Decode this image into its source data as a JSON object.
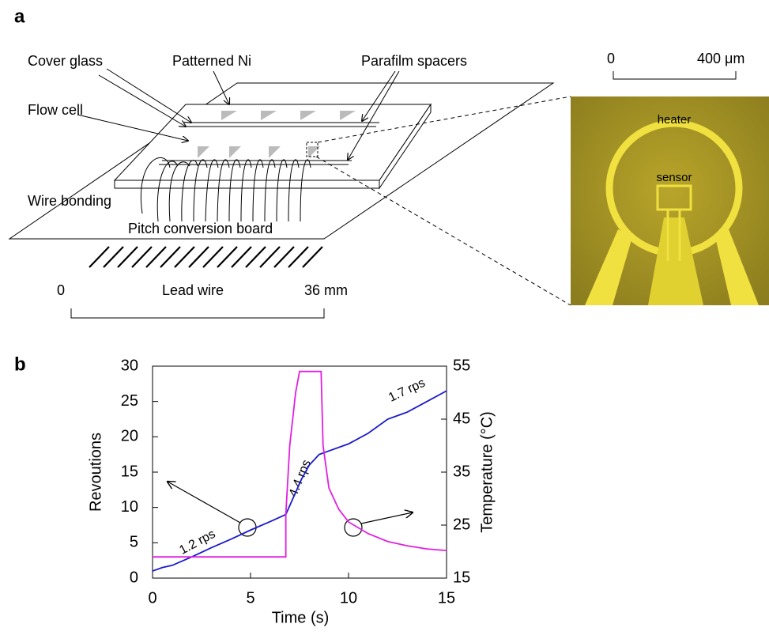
{
  "panel_labels": [
    "a",
    "b"
  ],
  "diagram": {
    "labels": [
      "Cover glass",
      "Patterned Ni",
      "Parafilm spacers",
      "Flow cell",
      "Wire bonding",
      "Pitch conversion board",
      "Lead wire"
    ],
    "scale_bar": [
      "0",
      "36 mm"
    ],
    "micrograph": {
      "scale_bar": [
        "0",
        "400 μm"
      ],
      "heater": "heater",
      "sensor": "sensor"
    }
  },
  "chart_data": {
    "type": "line",
    "xlabel": "Time (s)",
    "ylabel": "Revoutions",
    "y2label": "Temperature (°C)",
    "xlim": [
      0,
      15
    ],
    "xticks": [
      0,
      5,
      10,
      15
    ],
    "ylim": [
      0,
      30
    ],
    "yticks": [
      0,
      5,
      10,
      15,
      20,
      25,
      30
    ],
    "y2lim": [
      15,
      55
    ],
    "y2ticks": [
      15,
      25,
      35,
      45,
      55
    ],
    "series": [
      {
        "color": "#1a1acc",
        "x": [
          0,
          0.5,
          1,
          2,
          3,
          4,
          5,
          6,
          6.8,
          7.2,
          7.6,
          8,
          8.5,
          9,
          10,
          11,
          12,
          13,
          14,
          15
        ],
        "values": [
          1,
          1.5,
          1.8,
          3,
          4.3,
          5.5,
          6.8,
          8,
          9,
          11.5,
          14,
          16,
          17.5,
          18,
          19,
          20.5,
          22.5,
          23.5,
          25,
          26.5
        ]
      },
      {
        "color": "#e020e0",
        "axis": "y2",
        "x": [
          0,
          6.8,
          6.8,
          7,
          7.3,
          7.5,
          8.6,
          8.7,
          9,
          9.5,
          10,
          11,
          12,
          13,
          14,
          15
        ],
        "values": [
          19,
          19,
          27,
          40,
          50,
          54,
          54,
          40,
          32,
          28,
          25.6,
          23.4,
          21.9,
          21.1,
          20.5,
          20.2
        ]
      }
    ],
    "annotations": [
      "1.2 rps",
      "4.4 rps",
      "1.7 rps"
    ]
  }
}
